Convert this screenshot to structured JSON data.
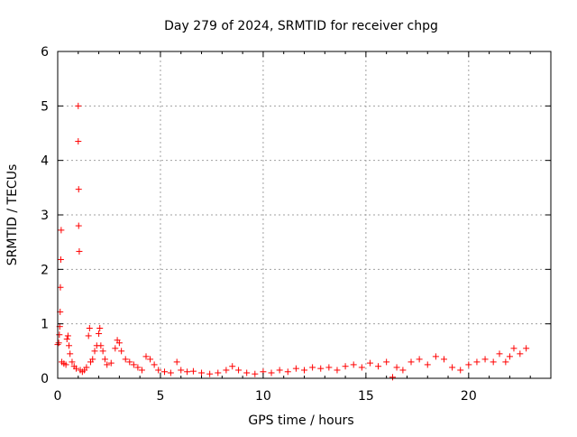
{
  "chart_data": {
    "type": "scatter",
    "title": "Day 279 of 2024, SRMTID for receiver chpg",
    "xlabel": "GPS time / hours",
    "ylabel": "SRMTID / TECUs",
    "xlim": [
      0,
      24.0
    ],
    "ylim": [
      0,
      6
    ],
    "xticks": [
      0,
      5,
      10,
      15,
      20
    ],
    "yticks": [
      0,
      1,
      2,
      3,
      4,
      5,
      6
    ],
    "grid": true,
    "marker": "+",
    "color": "#ff0000",
    "series": [
      {
        "name": "SRMTID",
        "points": [
          [
            0.0,
            0.62
          ],
          [
            0.05,
            0.65
          ],
          [
            0.08,
            0.8
          ],
          [
            0.1,
            0.95
          ],
          [
            0.12,
            1.22
          ],
          [
            0.13,
            1.67
          ],
          [
            0.15,
            2.18
          ],
          [
            0.17,
            2.72
          ],
          [
            0.2,
            0.3
          ],
          [
            0.3,
            0.27
          ],
          [
            0.4,
            0.25
          ],
          [
            0.45,
            0.72
          ],
          [
            0.5,
            0.78
          ],
          [
            0.55,
            0.6
          ],
          [
            0.6,
            0.45
          ],
          [
            0.7,
            0.3
          ],
          [
            0.8,
            0.22
          ],
          [
            0.9,
            0.18
          ],
          [
            1.0,
            5.0
          ],
          [
            1.0,
            4.35
          ],
          [
            1.02,
            3.47
          ],
          [
            1.02,
            2.8
          ],
          [
            1.05,
            2.33
          ],
          [
            1.1,
            0.15
          ],
          [
            1.2,
            0.12
          ],
          [
            1.3,
            0.15
          ],
          [
            1.4,
            0.2
          ],
          [
            1.5,
            0.78
          ],
          [
            1.55,
            0.92
          ],
          [
            1.6,
            0.3
          ],
          [
            1.7,
            0.35
          ],
          [
            1.8,
            0.5
          ],
          [
            1.9,
            0.6
          ],
          [
            2.0,
            0.82
          ],
          [
            2.05,
            0.92
          ],
          [
            2.1,
            0.6
          ],
          [
            2.2,
            0.5
          ],
          [
            2.3,
            0.35
          ],
          [
            2.4,
            0.25
          ],
          [
            2.6,
            0.28
          ],
          [
            2.8,
            0.55
          ],
          [
            2.9,
            0.7
          ],
          [
            3.0,
            0.65
          ],
          [
            3.1,
            0.5
          ],
          [
            3.3,
            0.35
          ],
          [
            3.5,
            0.3
          ],
          [
            3.7,
            0.25
          ],
          [
            3.9,
            0.2
          ],
          [
            4.1,
            0.15
          ],
          [
            4.3,
            0.4
          ],
          [
            4.5,
            0.35
          ],
          [
            4.7,
            0.25
          ],
          [
            4.9,
            0.15
          ],
          [
            5.2,
            0.12
          ],
          [
            5.5,
            0.1
          ],
          [
            5.8,
            0.3
          ],
          [
            6.0,
            0.15
          ],
          [
            6.3,
            0.12
          ],
          [
            6.6,
            0.13
          ],
          [
            7.0,
            0.1
          ],
          [
            7.4,
            0.08
          ],
          [
            7.8,
            0.1
          ],
          [
            8.2,
            0.15
          ],
          [
            8.5,
            0.22
          ],
          [
            8.8,
            0.15
          ],
          [
            9.2,
            0.1
          ],
          [
            9.6,
            0.08
          ],
          [
            10.0,
            0.12
          ],
          [
            10.4,
            0.1
          ],
          [
            10.8,
            0.15
          ],
          [
            11.2,
            0.12
          ],
          [
            11.6,
            0.18
          ],
          [
            12.0,
            0.15
          ],
          [
            12.4,
            0.2
          ],
          [
            12.8,
            0.18
          ],
          [
            13.2,
            0.2
          ],
          [
            13.6,
            0.15
          ],
          [
            14.0,
            0.22
          ],
          [
            14.4,
            0.25
          ],
          [
            14.8,
            0.2
          ],
          [
            15.2,
            0.28
          ],
          [
            15.6,
            0.22
          ],
          [
            16.0,
            0.3
          ],
          [
            16.3,
            0.02
          ],
          [
            16.5,
            0.2
          ],
          [
            16.8,
            0.15
          ],
          [
            17.2,
            0.3
          ],
          [
            17.6,
            0.35
          ],
          [
            18.0,
            0.25
          ],
          [
            18.4,
            0.4
          ],
          [
            18.8,
            0.35
          ],
          [
            19.2,
            0.2
          ],
          [
            19.6,
            0.15
          ],
          [
            20.0,
            0.25
          ],
          [
            20.4,
            0.3
          ],
          [
            20.8,
            0.35
          ],
          [
            21.2,
            0.3
          ],
          [
            21.5,
            0.45
          ],
          [
            21.8,
            0.3
          ],
          [
            22.0,
            0.4
          ],
          [
            22.2,
            0.55
          ],
          [
            22.5,
            0.45
          ],
          [
            22.8,
            0.55
          ]
        ]
      }
    ]
  }
}
